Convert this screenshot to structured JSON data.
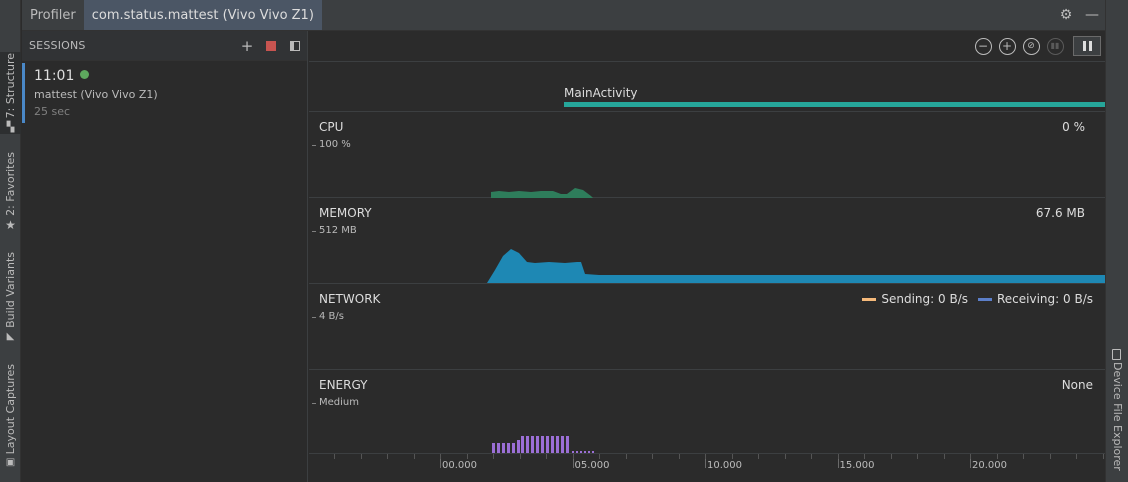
{
  "window": {
    "tab_profiler": "Profiler",
    "tab_process": "com.status.mattest (Vivo Vivo Z1)"
  },
  "left_tools": [
    {
      "label": "7: Structure",
      "icon": "structure-icon"
    },
    {
      "label": "2: Favorites",
      "icon": "star-icon"
    },
    {
      "label": "Build Variants",
      "icon": "android-icon"
    },
    {
      "label": "Layout Captures",
      "icon": "layout-captures-icon"
    }
  ],
  "right_tools": [
    {
      "label": "Device File Explorer",
      "icon": "device-icon"
    }
  ],
  "sessions": {
    "title": "SESSIONS",
    "items": [
      {
        "time": "11:01",
        "name": "mattest (Vivo Vivo Z1)",
        "duration": "25 sec",
        "status": "live"
      }
    ]
  },
  "activity": {
    "label": "MainActivity"
  },
  "monitors": {
    "cpu": {
      "title": "CPU",
      "scale": "100 %",
      "value": "0 %",
      "color": "#2e7d5b"
    },
    "memory": {
      "title": "MEMORY",
      "scale": "512 MB",
      "value": "67.6 MB",
      "color": "#1e88b4"
    },
    "network": {
      "title": "NETWORK",
      "scale": "4 B/s",
      "sending": "Sending: 0 B/s",
      "receiving": "Receiving: 0 B/s",
      "sending_color": "#f5b97a",
      "receiving_color": "#5c7fc9"
    },
    "energy": {
      "title": "ENERGY",
      "scale": "Medium",
      "value": "None",
      "color": "#9b6fd6"
    }
  },
  "timeline": {
    "ticks": [
      "00.000",
      "05.000",
      "10.000",
      "15.000",
      "20.000"
    ]
  },
  "colors": {
    "accent": "#4a88c7",
    "live_dot": "#5ea85e",
    "activity_bar": "#26a69a",
    "stop": "#c75450"
  }
}
